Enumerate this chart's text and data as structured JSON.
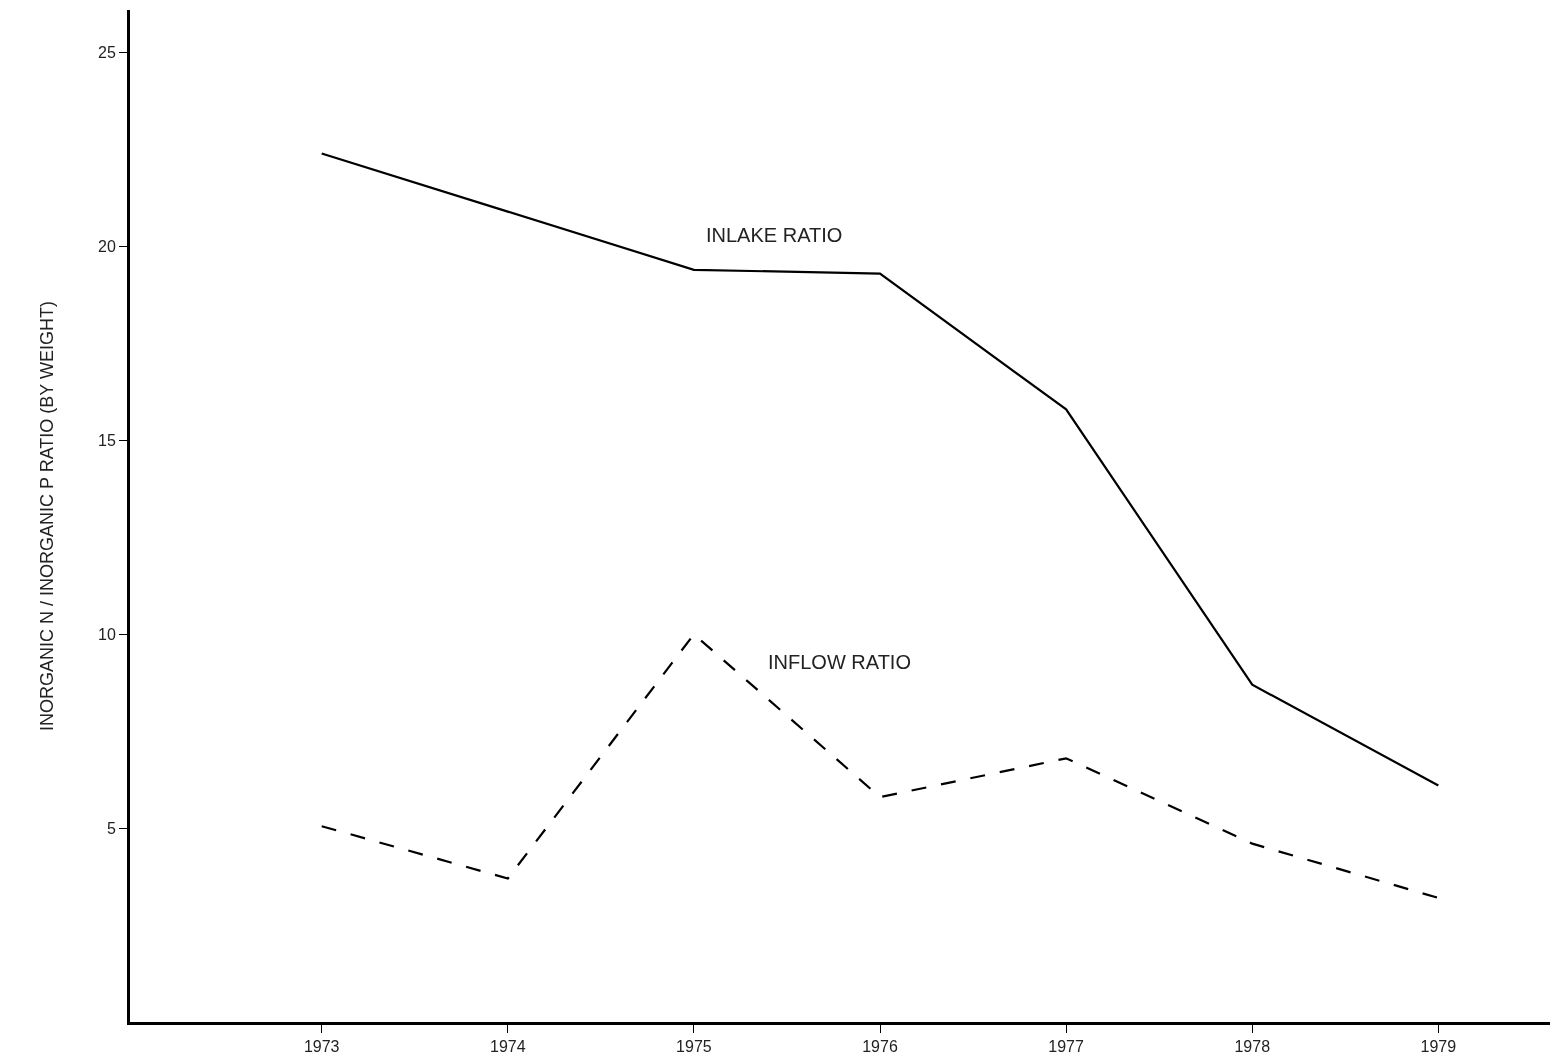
{
  "chart_data": {
    "type": "line",
    "ylabel": "INORGANIC N / INORGANIC P RATIO (BY WEIGHT)",
    "x": [
      1973,
      1974,
      1975,
      1976,
      1977,
      1978,
      1979
    ],
    "series": [
      {
        "name": "INLAKE RATIO",
        "color": "#000000",
        "line_style": "solid",
        "values": [
          22.4,
          20.9,
          19.4,
          19.3,
          15.8,
          8.7,
          6.1
        ]
      },
      {
        "name": "INFLOW RATIO",
        "color": "#000000",
        "line_style": "dashed",
        "values": [
          5.05,
          3.7,
          10.0,
          5.8,
          6.8,
          4.6,
          3.2
        ]
      }
    ],
    "xlim": [
      1971.97,
      1979.6
    ],
    "xticks": [
      1973,
      1974,
      1975,
      1976,
      1977,
      1978,
      1979
    ],
    "ylim": [
      0,
      26.1
    ],
    "yticks": [
      5,
      10,
      15,
      20,
      25
    ],
    "legend": false,
    "marker": "none"
  }
}
